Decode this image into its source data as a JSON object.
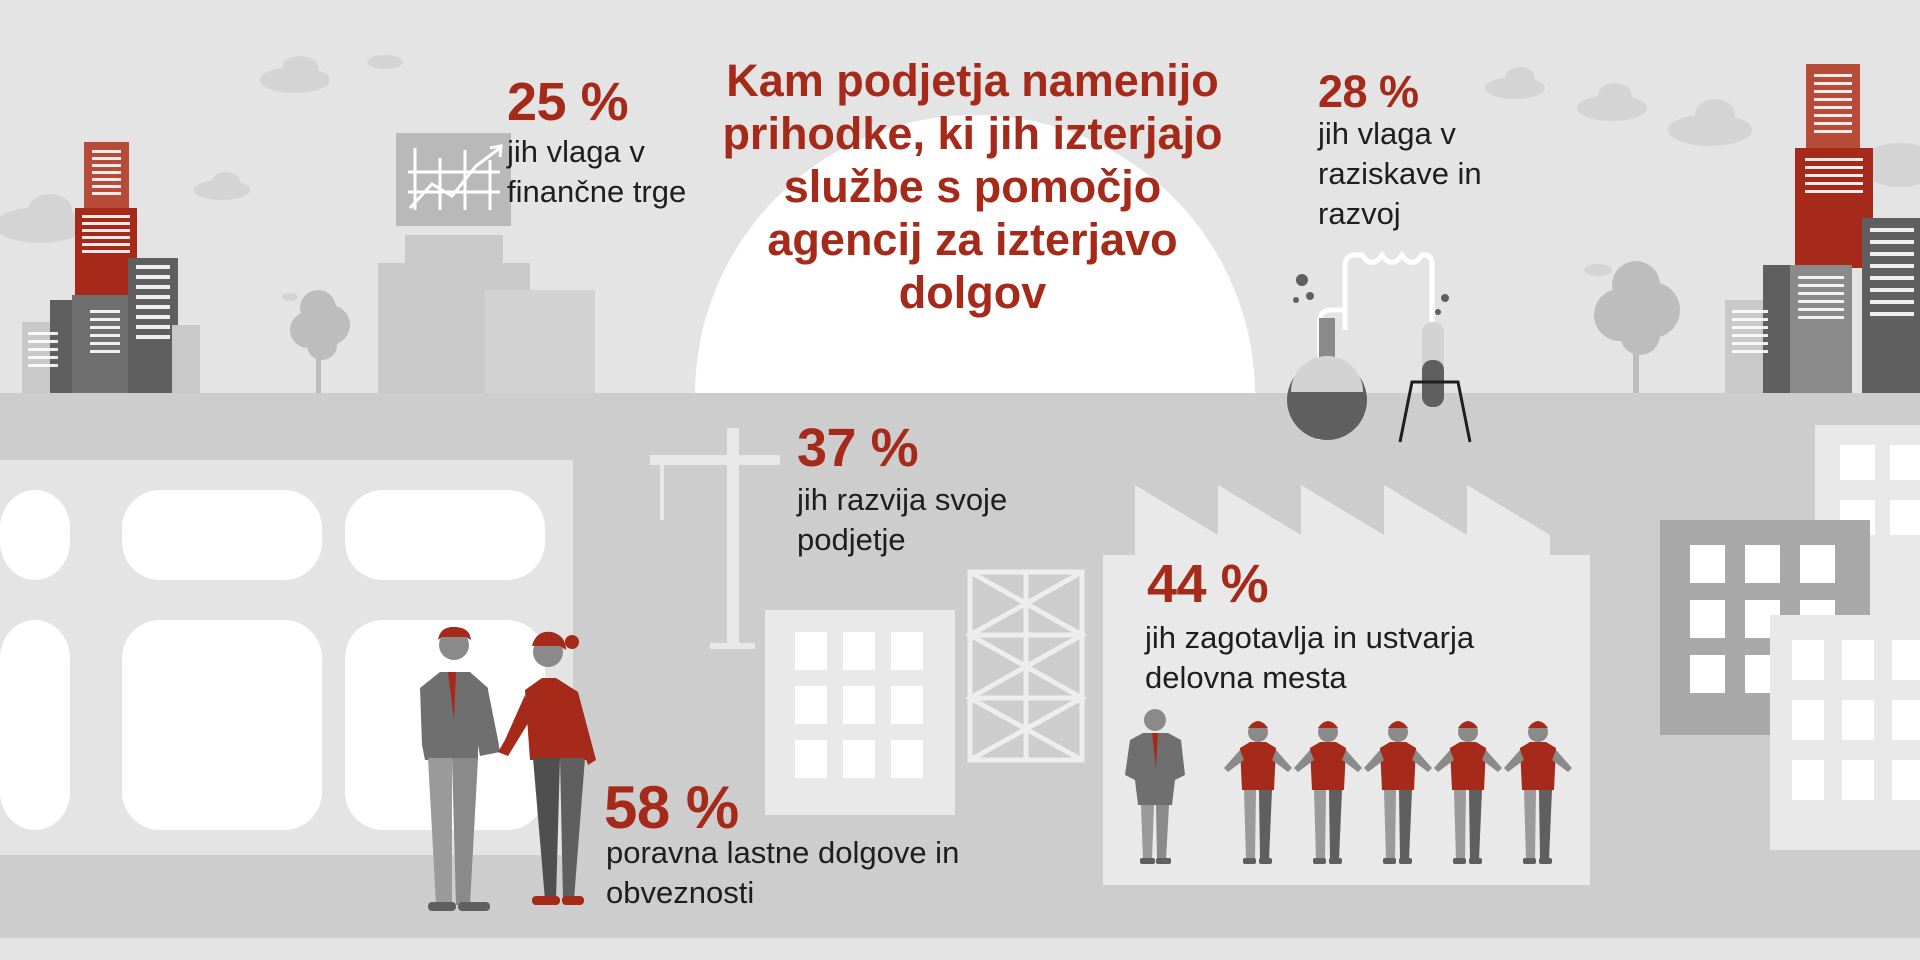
{
  "title": "Kam podjetja namenijo prihodke, ki jih izterjajo službe s pomočjo agencij za izterjavo dolgov",
  "stats": [
    {
      "percent": "25 %",
      "text": "jih vlaga v finančne trge",
      "icon": "stock-chart-icon"
    },
    {
      "percent": "28 %",
      "text": "jih vlaga v raziskave in razvoj",
      "icon": "lab-flask-icon"
    },
    {
      "percent": "37 %",
      "text": "jih razvija svoje podjetje",
      "icon": "construction-crane-icon"
    },
    {
      "percent": "44 %",
      "text": "jih zagotavlja in ustvarja delovna mesta",
      "icon": "workers-icon"
    },
    {
      "percent": "58 %",
      "text": "poravna lastne dolgove in obveznosti",
      "icon": "handshake-icon"
    }
  ],
  "colors": {
    "accent": "#a52a1a",
    "background": "#e4e4e4",
    "ground": "#cdcdcd",
    "dark_gray": "#5f5f5f",
    "mid_gray": "#a9a9a9",
    "light_gray": "#d3d3d3",
    "text": "#1e1e1e"
  }
}
